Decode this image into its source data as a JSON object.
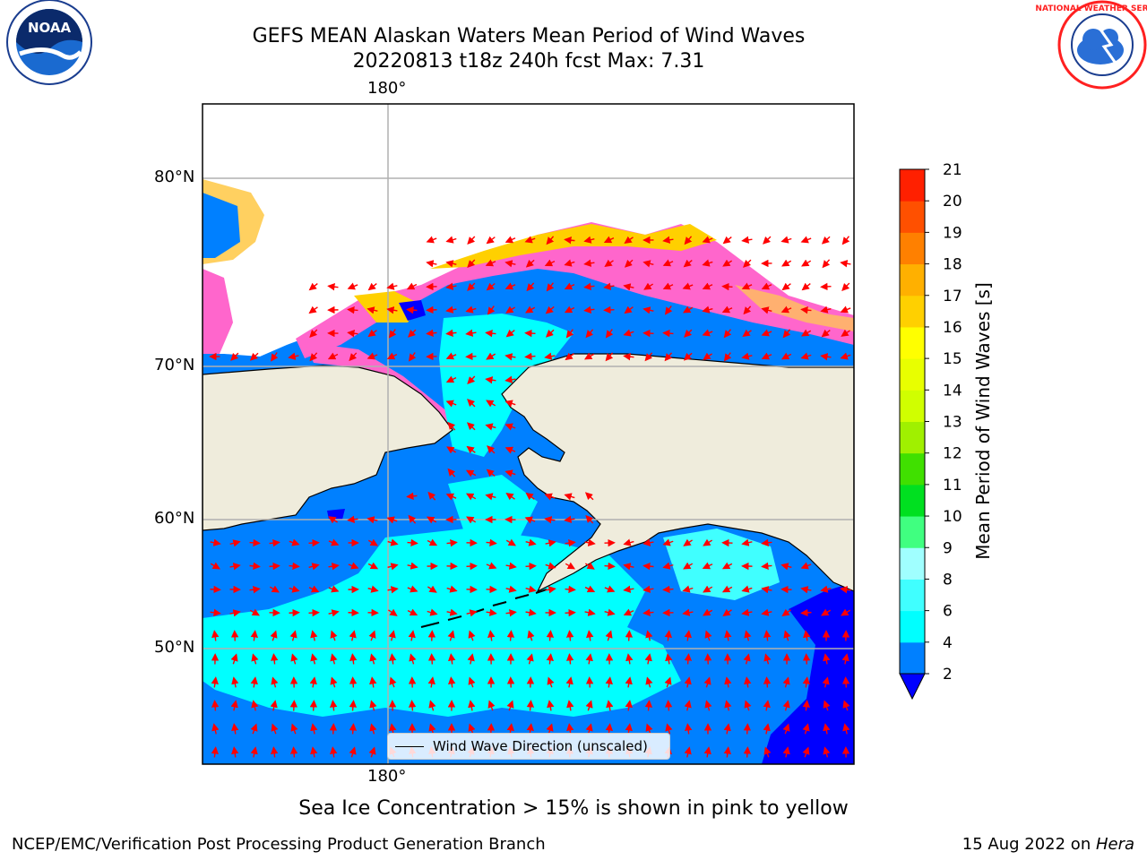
{
  "header": {
    "title_line1": "GEFS MEAN Alaskan Waters Mean Period of Wind Waves",
    "title_line2": "20220813 t18z 240h fcst   Max: 7.31",
    "left_logo": {
      "name": "noaa-logo",
      "text": "NOAA",
      "ring_text": "NATIONAL OCEANIC AND ATMOSPHERIC ADMINISTRATION · U.S. DEPARTMENT OF COMMERCE"
    },
    "right_logo": {
      "name": "nws-logo",
      "ring_text": "NATIONAL WEATHER SERVICE"
    }
  },
  "chart_data": {
    "type": "heatmap",
    "title": "GEFS MEAN Alaskan Waters Mean Period of Wind Waves",
    "subtitle": "20220813 t18z 240h fcst   Max: 7.31",
    "lon_labels": {
      "top": "180°",
      "bottom": "180°"
    },
    "lat_labels": [
      "80°N",
      "70°N",
      "60°N",
      "50°N"
    ],
    "grid": true,
    "colorbar": {
      "label": "Mean Period of Wind Waves [s]",
      "ticks": [
        "21",
        "20",
        "19",
        "18",
        "17",
        "16",
        "15",
        "14",
        "13",
        "12",
        "11",
        "10",
        "9",
        "8",
        "6",
        "4",
        "2"
      ],
      "bins": [
        {
          "from": 2,
          "to": 4,
          "color": "#0080ff"
        },
        {
          "from": 4,
          "to": 6,
          "color": "#00ffff"
        },
        {
          "from": 6,
          "to": 8,
          "color": "#40ffff"
        },
        {
          "from": 8,
          "to": 9,
          "color": "#a0ffff"
        },
        {
          "from": 9,
          "to": 10,
          "color": "#40ff80"
        },
        {
          "from": 10,
          "to": 11,
          "color": "#00e020"
        },
        {
          "from": 11,
          "to": 12,
          "color": "#40e000"
        },
        {
          "from": 12,
          "to": 13,
          "color": "#a0f000"
        },
        {
          "from": 13,
          "to": 14,
          "color": "#d0ff00"
        },
        {
          "from": 14,
          "to": 15,
          "color": "#e8ff00"
        },
        {
          "from": 15,
          "to": 16,
          "color": "#ffff00"
        },
        {
          "from": 16,
          "to": 17,
          "color": "#ffd000"
        },
        {
          "from": 17,
          "to": 18,
          "color": "#ffb000"
        },
        {
          "from": 18,
          "to": 19,
          "color": "#ff8000"
        },
        {
          "from": 19,
          "to": 20,
          "color": "#ff5000"
        },
        {
          "from": 20,
          "to": 21,
          "color": "#ff2000"
        }
      ],
      "under_color": "#0000ff",
      "extend": "min"
    },
    "legend": {
      "label": "Wind Wave Direction (unscaled)",
      "placement": "bottom-center"
    },
    "colors": {
      "land": "#efecdc",
      "ocean_low": "#0080ff",
      "ocean_mid": "#00ffff",
      "vector": "#ff0000",
      "ice_low": "#ff66cc",
      "ice_high": "#ffe040"
    }
  },
  "caption": "Sea Ice Concentration > 15% is shown in pink to yellow",
  "footer": {
    "left": "NCEP/EMC/Verification Post Processing Product Generation Branch",
    "right_prefix": "15 Aug 2022 on ",
    "right_italic": "Hera"
  }
}
